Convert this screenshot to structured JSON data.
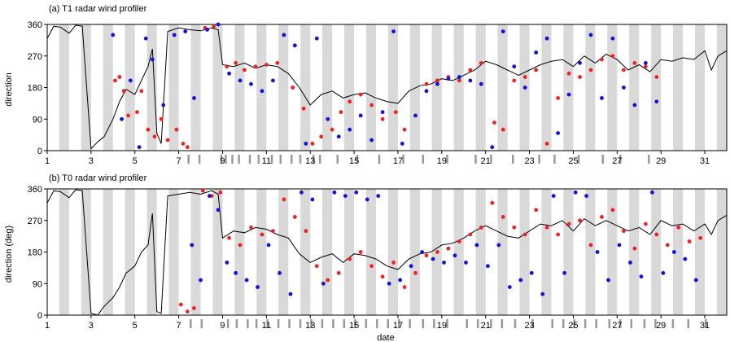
{
  "chart_data": [
    {
      "type": "scatter",
      "title": "(a) T1 radar wind profiler",
      "xlabel": "",
      "ylabel": "direction",
      "xlim": [
        1,
        32
      ],
      "ylim": [
        0,
        360
      ],
      "x_ticks": [
        1,
        3,
        5,
        7,
        9,
        11,
        13,
        15,
        17,
        19,
        21,
        23,
        25,
        27,
        29,
        31
      ],
      "y_ticks": [
        0,
        90,
        180,
        270,
        360
      ],
      "colors": {
        "red": "#ee2222",
        "blue": "#1111dd",
        "line": "#000000",
        "night": "#d9d9d9",
        "rain": "#999999"
      },
      "line_series": {
        "x": [
          1,
          1.3,
          1.6,
          2,
          2.3,
          2.6,
          3,
          3.3,
          3.6,
          4,
          4.3,
          4.6,
          5,
          5.3,
          5.6,
          5.8,
          6,
          6.2,
          6.5,
          7,
          7.5,
          8,
          8.5,
          8.8,
          9,
          9.5,
          10,
          10.5,
          11,
          11.5,
          12,
          12.5,
          13,
          13.5,
          14,
          14.5,
          15,
          15.5,
          16,
          16.5,
          17,
          17.5,
          18,
          18.5,
          19,
          19.5,
          20,
          20.5,
          21,
          21.5,
          22,
          22.5,
          23,
          23.5,
          24,
          24.5,
          25,
          25.5,
          26,
          26.5,
          27,
          27.5,
          28,
          28.5,
          29,
          29.5,
          30,
          30.5,
          31,
          31.3,
          31.6,
          32
        ],
        "y": [
          320,
          355,
          352,
          335,
          358,
          355,
          5,
          25,
          40,
          90,
          140,
          175,
          160,
          200,
          240,
          290,
          50,
          20,
          340,
          350,
          345,
          342,
          350,
          345,
          245,
          240,
          250,
          235,
          245,
          240,
          220,
          180,
          130,
          160,
          170,
          150,
          160,
          165,
          150,
          140,
          135,
          170,
          185,
          190,
          205,
          200,
          215,
          230,
          255,
          245,
          230,
          215,
          230,
          245,
          255,
          260,
          240,
          270,
          250,
          275,
          260,
          230,
          245,
          225,
          260,
          255,
          265,
          260,
          285,
          230,
          270,
          285
        ]
      },
      "series": [
        {
          "color": "red",
          "x": [
            4.1,
            4.3,
            4.5,
            4.7,
            5.1,
            5.3,
            5.6,
            5.9,
            6.2,
            6.5,
            6.9,
            7.2,
            7.4,
            8.2,
            8.6,
            9.2,
            9.6,
            10,
            10.5,
            11,
            11.5,
            12.2,
            12.7,
            13.1,
            13.5,
            14,
            14.4,
            14.8,
            15.3,
            15.8,
            16.3,
            16.9,
            17.3,
            18.3,
            18.8,
            19.3,
            19.8,
            20.3,
            20.8,
            21.4,
            21.8,
            22.3,
            22.8,
            23.3,
            23.8,
            24.3,
            24.8,
            25.3,
            25.8,
            26.3,
            26.8,
            27.3,
            27.8,
            28.3,
            28.8
          ],
          "y": [
            200,
            210,
            170,
            100,
            110,
            170,
            60,
            40,
            90,
            30,
            60,
            20,
            10,
            350,
            355,
            240,
            250,
            230,
            240,
            245,
            250,
            180,
            120,
            20,
            40,
            60,
            110,
            140,
            160,
            130,
            90,
            110,
            60,
            190,
            200,
            210,
            200,
            230,
            250,
            80,
            60,
            200,
            210,
            230,
            20,
            150,
            220,
            210,
            230,
            260,
            270,
            230,
            250,
            240,
            210
          ]
        },
        {
          "color": "blue",
          "x": [
            4,
            4.4,
            4.8,
            5.2,
            5.5,
            5.8,
            6.3,
            6.8,
            7.3,
            7.7,
            8.3,
            8.8,
            9.3,
            9.8,
            10.3,
            10.8,
            11.3,
            11.8,
            12.3,
            12.8,
            13.3,
            13.8,
            14.3,
            14.8,
            15.3,
            15.8,
            16.3,
            16.8,
            17.2,
            17.8,
            18.3,
            18.8,
            19.3,
            19.8,
            20.3,
            20.8,
            21.3,
            21.8,
            22.3,
            22.8,
            23.3,
            23.8,
            24.3,
            24.8,
            25.3,
            25.8,
            26.3,
            26.8,
            27.3,
            27.8,
            28.3,
            28.8
          ],
          "y": [
            330,
            90,
            200,
            10,
            320,
            260,
            130,
            330,
            340,
            150,
            345,
            360,
            220,
            200,
            190,
            170,
            200,
            330,
            300,
            20,
            320,
            90,
            40,
            60,
            100,
            30,
            110,
            340,
            20,
            100,
            170,
            190,
            205,
            210,
            200,
            190,
            10,
            340,
            240,
            180,
            280,
            320,
            50,
            160,
            250,
            330,
            150,
            320,
            180,
            130,
            250,
            140
          ]
        }
      ],
      "night_shading": "gray bands",
      "rain_marks": "dark gray bars along x axis"
    },
    {
      "type": "scatter",
      "title": "(b) T0 radar wind profiler",
      "xlabel": "date",
      "ylabel": "direction (deg)",
      "xlim": [
        1,
        32
      ],
      "ylim": [
        0,
        360
      ],
      "x_ticks": [
        1,
        3,
        5,
        7,
        9,
        11,
        13,
        15,
        17,
        19,
        21,
        23,
        25,
        27,
        29,
        31
      ],
      "y_ticks": [
        0,
        90,
        180,
        270,
        360
      ],
      "colors": {
        "red": "#ee2222",
        "blue": "#1111dd",
        "line": "#000000",
        "night": "#d9d9d9",
        "rain": "#999999"
      },
      "line_series": {
        "x": [
          1,
          1.3,
          1.6,
          2,
          2.3,
          2.6,
          3,
          3.3,
          3.6,
          4,
          4.3,
          4.6,
          5,
          5.3,
          5.6,
          5.8,
          6,
          6.2,
          6.5,
          7,
          7.5,
          8,
          8.5,
          8.8,
          9,
          9.5,
          10,
          10.5,
          11,
          11.5,
          12,
          12.5,
          13,
          13.5,
          14,
          14.5,
          15,
          15.5,
          16,
          16.5,
          17,
          17.5,
          18,
          18.5,
          19,
          19.5,
          20,
          20.5,
          21,
          21.5,
          22,
          22.5,
          23,
          23.5,
          24,
          24.5,
          25,
          25.5,
          26,
          26.5,
          27,
          27.5,
          28,
          28.5,
          29,
          29.5,
          30,
          30.5,
          31,
          31.3,
          31.6,
          32
        ],
        "y": [
          320,
          355,
          352,
          335,
          358,
          355,
          5,
          0,
          25,
          50,
          80,
          120,
          140,
          180,
          200,
          290,
          10,
          5,
          340,
          345,
          350,
          345,
          355,
          345,
          220,
          240,
          235,
          250,
          245,
          230,
          220,
          175,
          150,
          165,
          175,
          150,
          175,
          170,
          160,
          140,
          130,
          160,
          175,
          180,
          200,
          205,
          220,
          240,
          255,
          240,
          225,
          220,
          240,
          260,
          255,
          270,
          240,
          275,
          255,
          270,
          255,
          240,
          250,
          230,
          270,
          255,
          260,
          240,
          260,
          230,
          270,
          285
        ]
      },
      "series": [
        {
          "color": "red",
          "x": [
            7.1,
            7.4,
            7.7,
            8.1,
            8.5,
            8.9,
            9.3,
            9.8,
            10.3,
            10.8,
            11.3,
            11.8,
            12.3,
            12.8,
            13.3,
            13.8,
            14.3,
            14.8,
            15.3,
            15.8,
            16.3,
            16.8,
            17.3,
            17.8,
            18.3,
            18.8,
            19.3,
            19.8,
            20.3,
            20.8,
            21.3,
            21.8,
            22.3,
            22.8,
            23.3,
            23.8,
            24.3,
            24.8,
            25.3,
            25.8,
            26.3,
            26.8,
            27.3,
            27.8,
            28.3,
            28.8,
            29.3,
            29.8,
            30.3,
            30.8
          ],
          "y": [
            30,
            10,
            20,
            355,
            340,
            350,
            220,
            200,
            250,
            230,
            240,
            330,
            280,
            240,
            140,
            100,
            120,
            160,
            180,
            140,
            110,
            150,
            80,
            120,
            170,
            180,
            190,
            210,
            230,
            250,
            320,
            280,
            250,
            230,
            300,
            250,
            230,
            260,
            270,
            200,
            280,
            300,
            240,
            190,
            260,
            230,
            200,
            250,
            210,
            220
          ]
        },
        {
          "color": "blue",
          "x": [
            7.6,
            8,
            8.4,
            8.8,
            9.2,
            9.6,
            10.1,
            10.6,
            11.1,
            11.6,
            12.1,
            12.6,
            13.1,
            13.6,
            14.1,
            14.6,
            15.1,
            15.6,
            16.1,
            16.6,
            17.1,
            17.6,
            18.1,
            18.6,
            19.1,
            19.6,
            20.1,
            20.6,
            21.1,
            21.6,
            22.1,
            22.6,
            23.1,
            23.6,
            24.1,
            24.6,
            25.1,
            25.6,
            26.1,
            26.6,
            27.1,
            27.6,
            28.1,
            28.6,
            29.1,
            29.6,
            30.1,
            30.6
          ],
          "y": [
            200,
            100,
            340,
            300,
            150,
            120,
            100,
            80,
            200,
            120,
            60,
            350,
            330,
            90,
            350,
            340,
            350,
            330,
            340,
            90,
            100,
            140,
            180,
            160,
            150,
            170,
            150,
            200,
            140,
            200,
            80,
            100,
            120,
            60,
            340,
            120,
            350,
            340,
            180,
            100,
            200,
            150,
            110,
            350,
            120,
            180,
            160,
            100
          ]
        }
      ],
      "night_shading": "gray bands",
      "rain_marks": "dark gray bars along x axis"
    }
  ]
}
